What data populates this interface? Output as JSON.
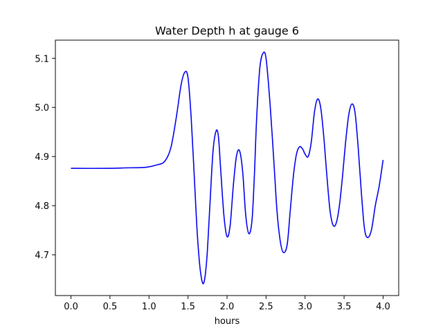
{
  "chart_data": {
    "type": "line",
    "title": "Water Depth h at gauge 6",
    "xlabel": "hours",
    "ylabel": "",
    "xlim": [
      -0.2,
      4.2
    ],
    "ylim": [
      4.617,
      5.137
    ],
    "xticks": [
      0.0,
      0.5,
      1.0,
      1.5,
      2.0,
      2.5,
      3.0,
      3.5,
      4.0
    ],
    "xtick_labels": [
      "0.0",
      "0.5",
      "1.0",
      "1.5",
      "2.0",
      "2.5",
      "3.0",
      "3.5",
      "4.0"
    ],
    "yticks": [
      4.7,
      4.8,
      4.9,
      5.0,
      5.1
    ],
    "ytick_labels": [
      "4.7",
      "4.8",
      "4.9",
      "5.0",
      "5.1"
    ],
    "grid": false,
    "series": [
      {
        "color": "#0000ee",
        "x": [
          0.0,
          0.5,
          0.7,
          0.95,
          1.1,
          1.2,
          1.28,
          1.35,
          1.41,
          1.46,
          1.5,
          1.54,
          1.58,
          1.62,
          1.66,
          1.7,
          1.74,
          1.78,
          1.82,
          1.86,
          1.89,
          1.92,
          1.96,
          2.0,
          2.04,
          2.08,
          2.12,
          2.16,
          2.2,
          2.24,
          2.28,
          2.32,
          2.35,
          2.38,
          2.42,
          2.46,
          2.5,
          2.55,
          2.6,
          2.64,
          2.68,
          2.72,
          2.77,
          2.81,
          2.85,
          2.89,
          2.93,
          2.97,
          3.0,
          3.04,
          3.08,
          3.12,
          3.16,
          3.2,
          3.24,
          3.28,
          3.32,
          3.36,
          3.4,
          3.44,
          3.48,
          3.52,
          3.56,
          3.6,
          3.64,
          3.68,
          3.72,
          3.76,
          3.8,
          3.85,
          3.9,
          3.95,
          4.0
        ],
        "y": [
          4.876,
          4.876,
          4.877,
          4.878,
          4.883,
          4.89,
          4.918,
          4.98,
          5.045,
          5.072,
          5.06,
          4.98,
          4.86,
          4.74,
          4.665,
          4.642,
          4.69,
          4.8,
          4.91,
          4.952,
          4.94,
          4.87,
          4.78,
          4.737,
          4.76,
          4.84,
          4.9,
          4.912,
          4.87,
          4.78,
          4.743,
          4.77,
          4.86,
          4.98,
          5.08,
          5.11,
          5.1,
          5.01,
          4.89,
          4.79,
          4.73,
          4.705,
          4.72,
          4.79,
          4.86,
          4.905,
          4.92,
          4.915,
          4.905,
          4.9,
          4.93,
          4.99,
          5.017,
          5.0,
          4.94,
          4.86,
          4.79,
          4.76,
          4.765,
          4.8,
          4.86,
          4.93,
          4.985,
          5.007,
          4.99,
          4.92,
          4.83,
          4.755,
          4.735,
          4.75,
          4.8,
          4.84,
          4.893
        ]
      }
    ]
  }
}
